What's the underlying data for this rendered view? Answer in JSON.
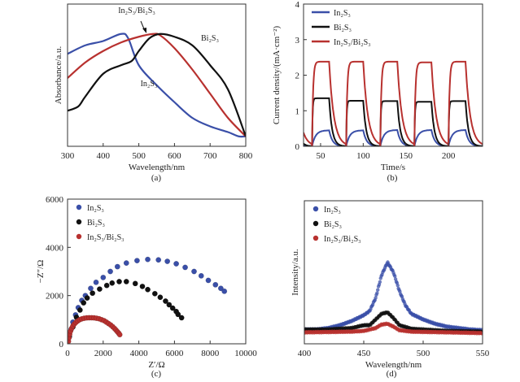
{
  "colors": {
    "In2S3": "#3a4fa8",
    "Bi2S3": "#111111",
    "In2S3_Bi2S3": "#b8312f"
  },
  "chart_data": [
    {
      "id": "a",
      "type": "line",
      "caption": "(a)",
      "xlabel": "Wavelength/nm",
      "ylabel": "Absorbance/a.u.",
      "xlim": [
        300,
        800
      ],
      "ylim": [
        0,
        1
      ],
      "xticks": [
        300,
        400,
        500,
        600,
        700,
        800
      ],
      "annotations": [
        {
          "text": "In₂S₃/Bi₂S₃",
          "arrow": true
        },
        {
          "text": "Bi₂S₃"
        },
        {
          "text": "In₂S₃"
        }
      ],
      "series": [
        {
          "key": "In2S3",
          "x": [
            300,
            350,
            400,
            450,
            470,
            500,
            550,
            600,
            650,
            700,
            750,
            780,
            800
          ],
          "y": [
            0.65,
            0.71,
            0.74,
            0.79,
            0.76,
            0.57,
            0.43,
            0.31,
            0.2,
            0.14,
            0.1,
            0.07,
            0.07
          ]
        },
        {
          "key": "In2S3_Bi2S3",
          "x": [
            300,
            350,
            400,
            450,
            500,
            540,
            560,
            600,
            650,
            700,
            750,
            800
          ],
          "y": [
            0.48,
            0.59,
            0.67,
            0.73,
            0.77,
            0.79,
            0.78,
            0.69,
            0.54,
            0.37,
            0.2,
            0.07
          ]
        },
        {
          "key": "Bi2S3",
          "x": [
            300,
            330,
            350,
            400,
            450,
            480,
            500,
            530,
            560,
            600,
            650,
            700,
            750,
            800
          ],
          "y": [
            0.25,
            0.28,
            0.35,
            0.51,
            0.57,
            0.6,
            0.67,
            0.76,
            0.79,
            0.77,
            0.71,
            0.57,
            0.4,
            0.07
          ]
        }
      ]
    },
    {
      "id": "b",
      "type": "line",
      "caption": "(b)",
      "xlabel": "Time/s",
      "ylabel": "Current density/(mA·cm⁻²)",
      "xlim": [
        30,
        240
      ],
      "ylim": [
        0,
        4
      ],
      "xticks": [
        50,
        100,
        150,
        200
      ],
      "yticks": [
        0,
        1,
        2,
        3,
        4
      ],
      "legend": "top-left",
      "light_on_intervals": [
        [
          40,
          60
        ],
        [
          80,
          100
        ],
        [
          120,
          140
        ],
        [
          160,
          180
        ],
        [
          200,
          220
        ]
      ],
      "series": [
        {
          "key": "In2S3",
          "name": "In₂S₃",
          "plateaus": [
            0.45,
            0.45,
            0.46,
            0.46,
            0.46
          ]
        },
        {
          "key": "Bi2S3",
          "name": "Bi₂S₃",
          "plateaus": [
            1.35,
            1.28,
            1.27,
            1.25,
            1.27
          ]
        },
        {
          "key": "In2S3_Bi2S3",
          "name": "In₂S₃/Bi₂S₃",
          "plateaus": [
            2.38,
            2.38,
            2.38,
            2.36,
            2.38
          ]
        }
      ]
    },
    {
      "id": "c",
      "type": "scatter",
      "caption": "(c)",
      "xlabel": "Z′/Ω",
      "ylabel": "−Z″/Ω",
      "xlim": [
        0,
        10000
      ],
      "ylim": [
        0,
        6000
      ],
      "xticks": [
        0,
        2000,
        4000,
        6000,
        8000,
        10000
      ],
      "yticks": [
        0,
        2000,
        4000,
        6000
      ],
      "legend": "top-left",
      "series": [
        {
          "key": "In2S3",
          "name": "In₂S₃",
          "x": [
            100,
            200,
            300,
            450,
            600,
            800,
            1000,
            1300,
            1600,
            2000,
            2400,
            2800,
            3300,
            3900,
            4500,
            5100,
            5600,
            6100,
            6600,
            7100,
            7500,
            7900,
            8300,
            8600,
            8800
          ],
          "y": [
            300,
            600,
            900,
            1200,
            1500,
            1800,
            2000,
            2300,
            2550,
            2750,
            3000,
            3200,
            3350,
            3450,
            3500,
            3480,
            3420,
            3320,
            3170,
            3000,
            2820,
            2630,
            2450,
            2300,
            2180
          ]
        },
        {
          "key": "Bi2S3",
          "name": "Bi₂S₃",
          "x": [
            100,
            300,
            500,
            700,
            900,
            1100,
            1400,
            1800,
            2200,
            2500,
            2900,
            3300,
            3800,
            4200,
            4500,
            4900,
            5200,
            5500,
            5700,
            5900,
            6100,
            6200,
            6400
          ],
          "y": [
            300,
            700,
            1100,
            1400,
            1700,
            1900,
            2100,
            2270,
            2420,
            2520,
            2580,
            2580,
            2500,
            2380,
            2250,
            2080,
            1930,
            1770,
            1620,
            1480,
            1340,
            1220,
            1080
          ]
        },
        {
          "key": "In2S3_Bi2S3",
          "name": "In₂S₃/Bi₂S₃",
          "x": [
            50,
            80,
            120,
            170,
            230,
            300,
            380,
            470,
            570,
            680,
            800,
            930,
            1070,
            1210,
            1350,
            1490,
            1630,
            1770,
            1910,
            2050,
            2180,
            2300,
            2420,
            2530,
            2630,
            2720,
            2800,
            2870,
            2930
          ],
          "y": [
            100,
            250,
            400,
            530,
            640,
            740,
            820,
            890,
            950,
            1000,
            1035,
            1060,
            1075,
            1080,
            1080,
            1075,
            1060,
            1040,
            1000,
            960,
            900,
            840,
            780,
            710,
            640,
            570,
            500,
            440,
            380
          ]
        }
      ]
    },
    {
      "id": "d",
      "type": "scatter",
      "caption": "(d)",
      "xlabel": "Wavelength/nm",
      "ylabel": "Intensity/a.u.",
      "xlim": [
        400,
        550
      ],
      "ylim": [
        0,
        1
      ],
      "xticks": [
        400,
        450,
        500,
        550
      ],
      "legend": "top-left",
      "series": [
        {
          "key": "In2S3",
          "name": "In₂S₃",
          "x": [
            400,
            410,
            420,
            430,
            440,
            450,
            455,
            460,
            465,
            470,
            475,
            480,
            485,
            490,
            500,
            510,
            520,
            530,
            540,
            550
          ],
          "y": [
            0.1,
            0.1,
            0.11,
            0.13,
            0.16,
            0.2,
            0.23,
            0.32,
            0.48,
            0.57,
            0.5,
            0.37,
            0.27,
            0.21,
            0.17,
            0.14,
            0.12,
            0.11,
            0.1,
            0.095
          ]
        },
        {
          "key": "Bi2S3",
          "name": "Bi₂S₃",
          "x": [
            400,
            420,
            440,
            450,
            455,
            460,
            465,
            470,
            475,
            480,
            490,
            500,
            520,
            550
          ],
          "y": [
            0.1,
            0.1,
            0.11,
            0.13,
            0.13,
            0.17,
            0.21,
            0.22,
            0.18,
            0.13,
            0.105,
            0.1,
            0.09,
            0.085
          ]
        },
        {
          "key": "In2S3_Bi2S3",
          "name": "In₂S₃/Bi₂S₃",
          "x": [
            400,
            440,
            450,
            460,
            465,
            470,
            475,
            480,
            490,
            520,
            550
          ],
          "y": [
            0.08,
            0.085,
            0.09,
            0.11,
            0.135,
            0.14,
            0.12,
            0.095,
            0.085,
            0.08,
            0.075
          ]
        }
      ]
    }
  ]
}
